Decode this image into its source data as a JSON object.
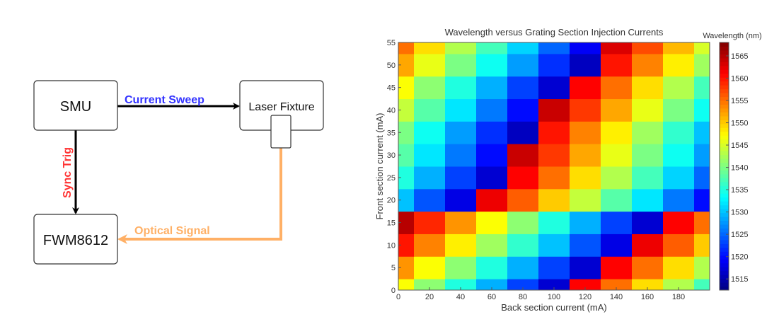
{
  "diagram": {
    "nodes": {
      "smu": "SMU",
      "laser_fixture": "Laser Fixture",
      "fwm": "FWM8612"
    },
    "edges": {
      "current_sweep": {
        "label": "Current Sweep",
        "color": "#3333ff"
      },
      "sync_trig": {
        "label": "Sync Trig",
        "color": "#ff3333"
      },
      "optical_signal": {
        "label": "Optical Signal",
        "color": "#ffb066"
      }
    }
  },
  "chart_data": {
    "type": "heatmap",
    "title": "Wavelength versus Grating Section Injection Currents",
    "xlabel": "Back section current (mA)",
    "ylabel": "Front section current (mA)",
    "colorbar_label": "Wavelength (nm)",
    "colormap": "jet",
    "xlim": [
      0,
      200
    ],
    "ylim": [
      0,
      55
    ],
    "clim": [
      1512.5,
      1568
    ],
    "xticks": [
      0,
      20,
      40,
      60,
      80,
      100,
      120,
      140,
      160,
      180
    ],
    "yticks": [
      0,
      5,
      10,
      15,
      20,
      25,
      30,
      35,
      40,
      45,
      50,
      55
    ],
    "cticks": [
      1515,
      1520,
      1525,
      1530,
      1535,
      1540,
      1545,
      1550,
      1555,
      1560,
      1565
    ],
    "x": [
      0,
      20,
      40,
      60,
      80,
      100,
      120,
      140,
      160,
      180,
      200
    ],
    "y": [
      0,
      5,
      10,
      15,
      20,
      25,
      30,
      35,
      40,
      45,
      50,
      55
    ],
    "z": [
      [
        1547,
        1541,
        1535,
        1529,
        1523,
        1517,
        1561,
        1555,
        1549,
        1543,
        1537
      ],
      [
        1553,
        1547,
        1541,
        1535,
        1529,
        1523,
        1517,
        1561,
        1555,
        1549,
        1543
      ],
      [
        1560,
        1554,
        1548,
        1542,
        1536,
        1530,
        1524,
        1518,
        1562,
        1556,
        1550
      ],
      [
        1565,
        1559,
        1553,
        1547,
        1541,
        1535,
        1529,
        1523,
        1517,
        1561,
        1555
      ],
      [
        1530,
        1524,
        1518,
        1562,
        1556,
        1550,
        1544,
        1538,
        1532,
        1526,
        1520
      ],
      [
        1535,
        1529,
        1523,
        1517,
        1561,
        1555,
        1549,
        1543,
        1537,
        1531,
        1525
      ],
      [
        1538,
        1532,
        1526,
        1520,
        1564,
        1558,
        1552,
        1546,
        1540,
        1534,
        1528
      ],
      [
        1540,
        1534,
        1528,
        1522,
        1516,
        1560,
        1554,
        1548,
        1542,
        1536,
        1530
      ],
      [
        1544,
        1538,
        1532,
        1526,
        1520,
        1564,
        1558,
        1552,
        1546,
        1540,
        1534
      ],
      [
        1547,
        1541,
        1535,
        1529,
        1523,
        1517,
        1561,
        1555,
        1549,
        1543,
        1537
      ],
      [
        1552,
        1546,
        1540,
        1534,
        1528,
        1522,
        1516,
        1560,
        1554,
        1548,
        1542
      ],
      [
        1555,
        1549,
        1543,
        1537,
        1531,
        1525,
        1519,
        1563,
        1557,
        1551,
        1545
      ]
    ]
  }
}
